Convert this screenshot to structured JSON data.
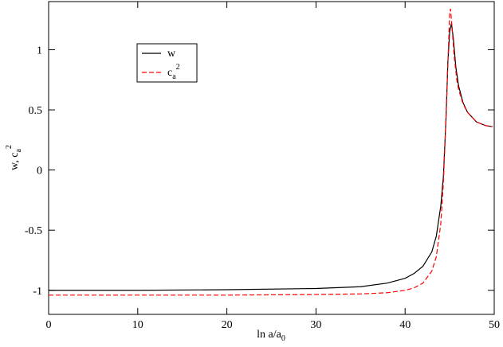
{
  "chart_data": {
    "type": "line",
    "xlabel": {
      "text": "ln a/a",
      "sub": "0"
    },
    "ylabel": {
      "text": "w,  c",
      "sub": "a",
      "sup": "2"
    },
    "xlim": [
      0,
      50
    ],
    "ylim": [
      -1.2,
      1.4
    ],
    "xticks": [
      0,
      10,
      20,
      30,
      40,
      50
    ],
    "yticks": [
      -1,
      -0.5,
      0,
      0.5,
      1
    ],
    "legend": "upper left",
    "series": [
      {
        "name": "w",
        "color": "#000000",
        "dash": false,
        "x": [
          0,
          10,
          20,
          30,
          35,
          38,
          40,
          41,
          42,
          43,
          43.5,
          44,
          44.3,
          44.6,
          44.8,
          45,
          45.2,
          45.4,
          45.7,
          46,
          46.5,
          47,
          48,
          49,
          49.8
        ],
        "values": [
          -1.0,
          -1.0,
          -0.995,
          -0.985,
          -0.97,
          -0.94,
          -0.9,
          -0.86,
          -0.8,
          -0.68,
          -0.55,
          -0.3,
          -0.05,
          0.45,
          0.9,
          1.15,
          1.22,
          1.1,
          0.85,
          0.7,
          0.56,
          0.48,
          0.4,
          0.37,
          0.36
        ]
      },
      {
        "name": "c",
        "name_sub": "a",
        "name_sup": "2",
        "color": "#ff0000",
        "dash": true,
        "x": [
          0,
          10,
          20,
          30,
          35,
          38,
          40,
          41,
          42,
          43,
          43.5,
          44,
          44.3,
          44.6,
          44.8,
          45,
          45.1,
          45.3,
          45.5,
          45.8,
          46,
          46.5,
          47,
          48,
          49,
          49.8
        ],
        "values": [
          -1.04,
          -1.04,
          -1.04,
          -1.035,
          -1.03,
          -1.02,
          -1.0,
          -0.98,
          -0.94,
          -0.84,
          -0.72,
          -0.45,
          -0.1,
          0.45,
          0.9,
          1.3,
          1.34,
          1.15,
          0.95,
          0.75,
          0.67,
          0.55,
          0.48,
          0.4,
          0.37,
          0.36
        ]
      }
    ]
  }
}
